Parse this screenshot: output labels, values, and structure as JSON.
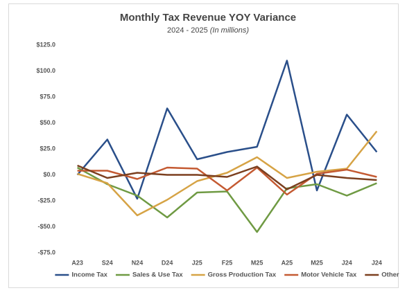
{
  "chart_data": {
    "type": "line",
    "title": "Monthly Tax Revenue YOY Variance",
    "subtitle": "2024 - 2025",
    "subtitle_note": "(In millions)",
    "categories": [
      "A23",
      "S24",
      "N24",
      "D24",
      "J25",
      "F25",
      "M25",
      "A25",
      "M25",
      "J24",
      "J24"
    ],
    "series": [
      {
        "name": "Income Tax",
        "color": "#2a4f8a",
        "values": [
          0,
          34,
          -23,
          64,
          15,
          22,
          27,
          110,
          -15,
          58,
          22
        ]
      },
      {
        "name": "Sales & Use Tax",
        "color": "#6f9a43",
        "values": [
          7,
          -9,
          -20,
          -41,
          -17,
          -16,
          -55,
          -13,
          -9,
          -20,
          -8
        ]
      },
      {
        "name": "Gross Production Tax",
        "color": "#d6a345",
        "values": [
          1,
          -8,
          -39,
          -24,
          -6,
          2,
          17,
          -3,
          3,
          6,
          42
        ]
      },
      {
        "name": "Motor Vehicle Tax",
        "color": "#c45a32",
        "values": [
          4,
          4,
          -4,
          7,
          6,
          -15,
          7,
          -19,
          1,
          5,
          -2
        ]
      },
      {
        "name": "Other",
        "color": "#7b3f1f",
        "values": [
          9,
          -3,
          2,
          0,
          0,
          -2,
          8,
          -14,
          0,
          -3,
          -5
        ]
      }
    ],
    "ylim": [
      -75,
      125
    ],
    "yticks": [
      {
        "value": -75,
        "label": "-$75.0"
      },
      {
        "value": -50,
        "label": "-$50.0"
      },
      {
        "value": -25,
        "label": "-$25.0"
      },
      {
        "value": 0,
        "label": "$0.0"
      },
      {
        "value": 25,
        "label": "$25.0"
      },
      {
        "value": 50,
        "label": "$50.0"
      },
      {
        "value": 75,
        "label": "$75.0"
      },
      {
        "value": 100,
        "label": "$100.0"
      },
      {
        "value": 125,
        "label": "$125.0"
      }
    ],
    "grid": false,
    "legend": "bottom"
  }
}
